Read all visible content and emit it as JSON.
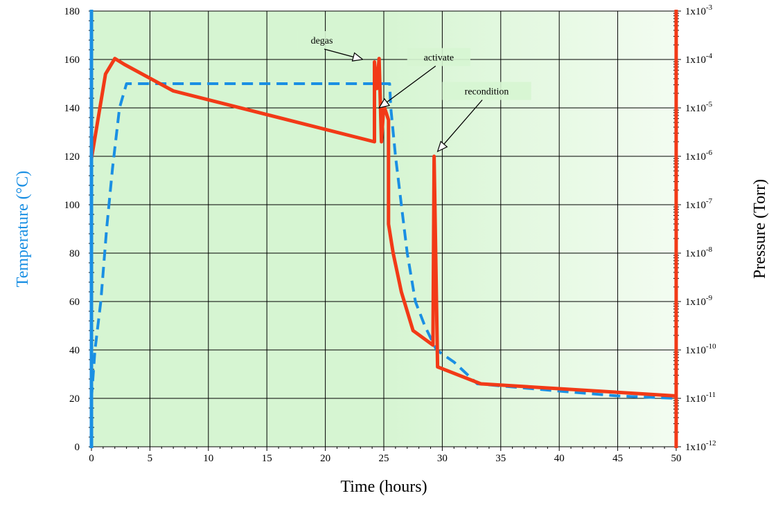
{
  "chart_data": {
    "type": "line",
    "xlabel": "Time  (hours)",
    "ylabel_left": "Temperature (°C)",
    "ylabel_right": "Pressure (Torr)",
    "xlim": [
      0,
      50
    ],
    "ylim_left": [
      0,
      180
    ],
    "ylim_right_log10": [
      -12,
      -3
    ],
    "right_scale": "log",
    "grid": true,
    "x_ticks": [
      "0",
      "5",
      "10",
      "15",
      "20",
      "25",
      "30",
      "35",
      "40",
      "45",
      "50"
    ],
    "y_left_ticks": [
      "0",
      "20",
      "40",
      "60",
      "80",
      "100",
      "120",
      "140",
      "160",
      "180"
    ],
    "y_right_ticks": [
      {
        "base": "1x10",
        "exp": "-12"
      },
      {
        "base": "1x10",
        "exp": "-11"
      },
      {
        "base": "1x10",
        "exp": "-10"
      },
      {
        "base": "1x10",
        "exp": "-9"
      },
      {
        "base": "1x10",
        "exp": "-8"
      },
      {
        "base": "1x10",
        "exp": "-7"
      },
      {
        "base": "1x10",
        "exp": "-6"
      },
      {
        "base": "1x10",
        "exp": "-5"
      },
      {
        "base": "1x10",
        "exp": "-4"
      },
      {
        "base": "1x10",
        "exp": "-3"
      }
    ],
    "colors": {
      "temperature": "#1a8fe3",
      "pressure": "#f23a17",
      "plot_bg_light": "#f3fcf1",
      "plot_bg_dark": "#d6f5d2",
      "grid": "#000000"
    },
    "series": [
      {
        "axis": "left",
        "style": "dashed",
        "points": [
          [
            0,
            20
          ],
          [
            0.3,
            40
          ],
          [
            0.8,
            60
          ],
          [
            1.3,
            90
          ],
          [
            1.8,
            115
          ],
          [
            2.4,
            140
          ],
          [
            3,
            150
          ],
          [
            25.5,
            150
          ],
          [
            25.6,
            140
          ],
          [
            26,
            120
          ],
          [
            26.5,
            100
          ],
          [
            27,
            80
          ],
          [
            27.7,
            60
          ],
          [
            28.5,
            50
          ],
          [
            29.5,
            40
          ],
          [
            31,
            35
          ],
          [
            33,
            26
          ],
          [
            40,
            23
          ],
          [
            45,
            21
          ],
          [
            50,
            20
          ]
        ]
      },
      {
        "axis": "right",
        "points": [
          [
            0,
            -6.05
          ],
          [
            1.2,
            -4.3
          ],
          [
            2,
            -3.98
          ],
          [
            2.8,
            -4.1
          ],
          [
            7,
            -4.65
          ],
          [
            24.2,
            -5.7
          ],
          [
            24.2,
            -4.05
          ],
          [
            24.4,
            -4.6
          ],
          [
            24.6,
            -3.98
          ],
          [
            24.8,
            -5.7
          ],
          [
            25,
            -4.95
          ],
          [
            25.4,
            -5.25
          ],
          [
            25.4,
            -7.4
          ],
          [
            25.8,
            -8.0
          ],
          [
            26.5,
            -8.8
          ],
          [
            27.5,
            -9.6
          ],
          [
            29.2,
            -9.9
          ],
          [
            29.3,
            -6.0
          ],
          [
            29.6,
            -10.35
          ],
          [
            33.3,
            -10.7
          ],
          [
            50,
            -10.95
          ],
          [
            50,
            -10.95
          ]
        ]
      }
    ],
    "annotations": [
      {
        "text": "degas",
        "point_x": 23.2,
        "point_y": 160,
        "box_x": 17.6,
        "box_y": 168,
        "box_w": 4.2
      },
      {
        "text": "activate",
        "point_x": 24.6,
        "point_y": 140,
        "box_x": 27,
        "box_y": 161,
        "box_w": 5.4
      },
      {
        "text": "recondition",
        "point_x": 29.6,
        "point_y": 122,
        "box_x": 30,
        "box_y": 147,
        "box_w": 7.6
      }
    ]
  }
}
